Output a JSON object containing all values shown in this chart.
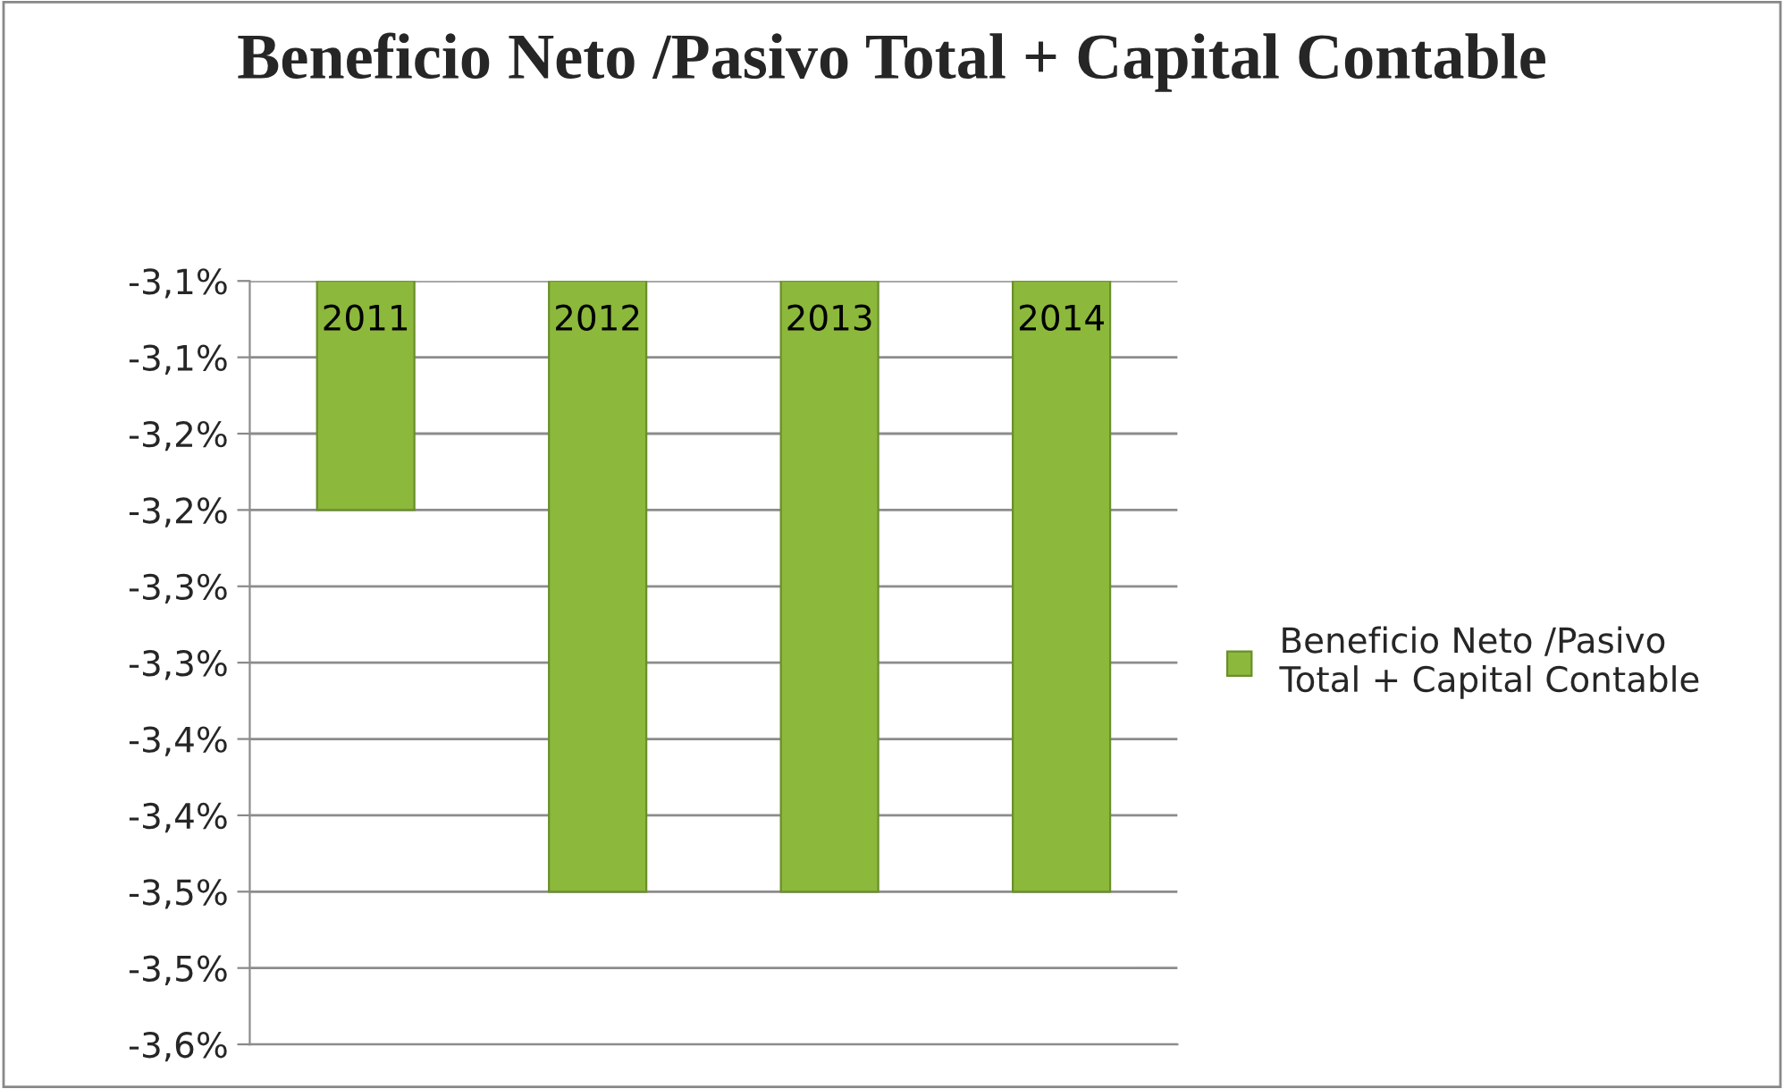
{
  "chart_data": {
    "type": "bar",
    "title": "Beneficio Neto /Pasivo Total + Capital Contable",
    "categories": [
      "2011",
      "2012",
      "2013",
      "2014"
    ],
    "series": [
      {
        "name": "Beneficio Neto /Pasivo Total + Capital Contable",
        "color": "#8cb83c",
        "values": [
          -3.25,
          -3.5,
          -3.5,
          -3.5
        ]
      }
    ],
    "ylim": [
      -3.6,
      -3.1
    ],
    "yticks": [
      {
        "value": -3.6,
        "label": "-3,6%"
      },
      {
        "value": -3.55,
        "label": "-3,5%"
      },
      {
        "value": -3.5,
        "label": "-3,5%"
      },
      {
        "value": -3.45,
        "label": "-3,4%"
      },
      {
        "value": -3.4,
        "label": "-3,4%"
      },
      {
        "value": -3.35,
        "label": "-3,3%"
      },
      {
        "value": -3.3,
        "label": "-3,3%"
      },
      {
        "value": -3.25,
        "label": "-3,2%"
      },
      {
        "value": -3.2,
        "label": "-3,2%"
      },
      {
        "value": -3.15,
        "label": "-3,1%"
      },
      {
        "value": -3.1,
        "label": "-3,1%"
      }
    ],
    "grid": "y",
    "legend": "right",
    "tick_labels": "y"
  }
}
